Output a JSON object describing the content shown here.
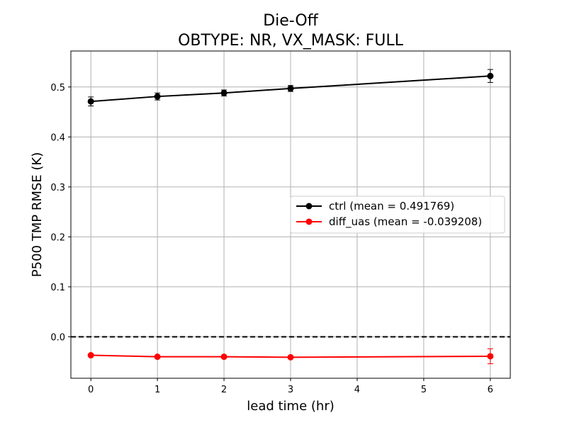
{
  "chart_data": {
    "type": "line",
    "title": "Die-Off",
    "subtitle": "OBTYPE: NR,  VX_MASK: FULL",
    "xlabel": "lead time (hr)",
    "ylabel": "P500 TMP RMSE (K)",
    "xlim": [
      -0.3,
      6.3
    ],
    "ylim": [
      -0.083,
      0.572
    ],
    "xticks": [
      0,
      1,
      2,
      3,
      4,
      5,
      6
    ],
    "yticks": [
      0.0,
      0.1,
      0.2,
      0.3,
      0.4,
      0.5
    ],
    "grid": true,
    "legend_position": "center-right",
    "reference_line": {
      "y": 0.0,
      "style": "dashed",
      "color": "#000000"
    },
    "series": [
      {
        "name": "ctrl (mean = 0.491769)",
        "color": "#000000",
        "x": [
          0,
          1,
          2,
          3,
          6
        ],
        "values": [
          0.471,
          0.481,
          0.488,
          0.497,
          0.522
        ],
        "error": [
          0.009,
          0.007,
          0.006,
          0.006,
          0.013
        ]
      },
      {
        "name": "diff_uas (mean = -0.039208)",
        "color": "#ff0000",
        "x": [
          0,
          1,
          2,
          3,
          6
        ],
        "values": [
          -0.037,
          -0.04,
          -0.04,
          -0.041,
          -0.039
        ],
        "error": [
          0.001,
          0.001,
          0.001,
          0.001,
          0.015
        ]
      }
    ]
  }
}
